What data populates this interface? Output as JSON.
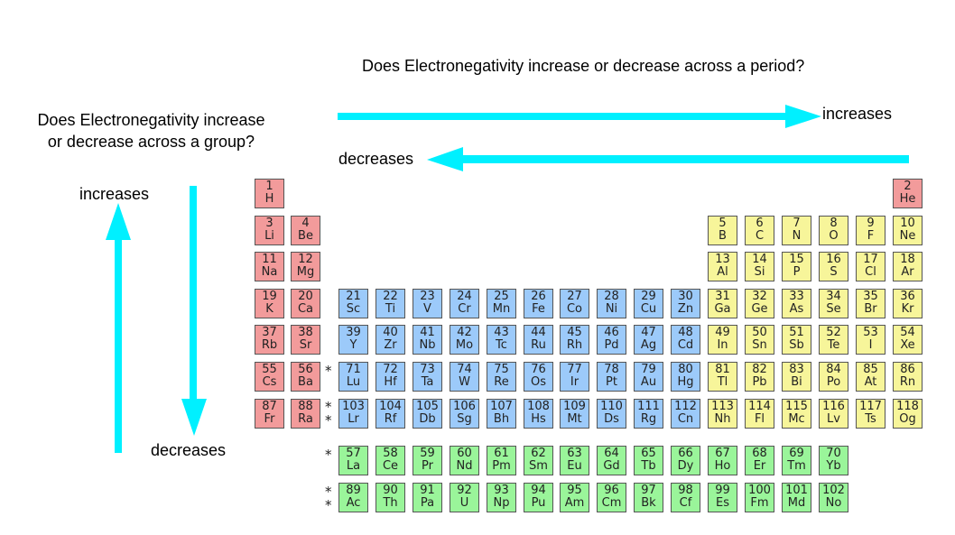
{
  "question_period": "Does Electronegativity increase or decrease across a period?",
  "question_group": "Does Electronegativity increase or decrease across a group?",
  "labels": {
    "period_increases": "increases",
    "period_decreases": "decreases",
    "group_increases": "increases",
    "group_decreases": "decreases"
  },
  "colors": {
    "arrow": "#00f0ff",
    "s_block": "#f29b9b",
    "p_block": "#f7f59a",
    "d_block": "#9ccafa",
    "f_block": "#9af59a"
  },
  "marker": "*",
  "elements": [
    {
      "n": "1",
      "s": "H",
      "row": 1,
      "col": 1,
      "b": "s"
    },
    {
      "n": "2",
      "s": "He",
      "row": 1,
      "col": 18,
      "b": "s"
    },
    {
      "n": "3",
      "s": "Li",
      "row": 2,
      "col": 1,
      "b": "s"
    },
    {
      "n": "4",
      "s": "Be",
      "row": 2,
      "col": 2,
      "b": "s"
    },
    {
      "n": "5",
      "s": "B",
      "row": 2,
      "col": 13,
      "b": "p"
    },
    {
      "n": "6",
      "s": "C",
      "row": 2,
      "col": 14,
      "b": "p"
    },
    {
      "n": "7",
      "s": "N",
      "row": 2,
      "col": 15,
      "b": "p"
    },
    {
      "n": "8",
      "s": "O",
      "row": 2,
      "col": 16,
      "b": "p"
    },
    {
      "n": "9",
      "s": "F",
      "row": 2,
      "col": 17,
      "b": "p"
    },
    {
      "n": "10",
      "s": "Ne",
      "row": 2,
      "col": 18,
      "b": "p"
    },
    {
      "n": "11",
      "s": "Na",
      "row": 3,
      "col": 1,
      "b": "s"
    },
    {
      "n": "12",
      "s": "Mg",
      "row": 3,
      "col": 2,
      "b": "s"
    },
    {
      "n": "13",
      "s": "Al",
      "row": 3,
      "col": 13,
      "b": "p"
    },
    {
      "n": "14",
      "s": "Si",
      "row": 3,
      "col": 14,
      "b": "p"
    },
    {
      "n": "15",
      "s": "P",
      "row": 3,
      "col": 15,
      "b": "p"
    },
    {
      "n": "16",
      "s": "S",
      "row": 3,
      "col": 16,
      "b": "p"
    },
    {
      "n": "17",
      "s": "Cl",
      "row": 3,
      "col": 17,
      "b": "p"
    },
    {
      "n": "18",
      "s": "Ar",
      "row": 3,
      "col": 18,
      "b": "p"
    },
    {
      "n": "19",
      "s": "K",
      "row": 4,
      "col": 1,
      "b": "s"
    },
    {
      "n": "20",
      "s": "Ca",
      "row": 4,
      "col": 2,
      "b": "s"
    },
    {
      "n": "21",
      "s": "Sc",
      "row": 4,
      "col": 3,
      "b": "d"
    },
    {
      "n": "22",
      "s": "Ti",
      "row": 4,
      "col": 4,
      "b": "d"
    },
    {
      "n": "23",
      "s": "V",
      "row": 4,
      "col": 5,
      "b": "d"
    },
    {
      "n": "24",
      "s": "Cr",
      "row": 4,
      "col": 6,
      "b": "d"
    },
    {
      "n": "25",
      "s": "Mn",
      "row": 4,
      "col": 7,
      "b": "d"
    },
    {
      "n": "26",
      "s": "Fe",
      "row": 4,
      "col": 8,
      "b": "d"
    },
    {
      "n": "27",
      "s": "Co",
      "row": 4,
      "col": 9,
      "b": "d"
    },
    {
      "n": "28",
      "s": "Ni",
      "row": 4,
      "col": 10,
      "b": "d"
    },
    {
      "n": "29",
      "s": "Cu",
      "row": 4,
      "col": 11,
      "b": "d"
    },
    {
      "n": "30",
      "s": "Zn",
      "row": 4,
      "col": 12,
      "b": "d"
    },
    {
      "n": "31",
      "s": "Ga",
      "row": 4,
      "col": 13,
      "b": "p"
    },
    {
      "n": "32",
      "s": "Ge",
      "row": 4,
      "col": 14,
      "b": "p"
    },
    {
      "n": "33",
      "s": "As",
      "row": 4,
      "col": 15,
      "b": "p"
    },
    {
      "n": "34",
      "s": "Se",
      "row": 4,
      "col": 16,
      "b": "p"
    },
    {
      "n": "35",
      "s": "Br",
      "row": 4,
      "col": 17,
      "b": "p"
    },
    {
      "n": "36",
      "s": "Kr",
      "row": 4,
      "col": 18,
      "b": "p"
    },
    {
      "n": "37",
      "s": "Rb",
      "row": 5,
      "col": 1,
      "b": "s"
    },
    {
      "n": "38",
      "s": "Sr",
      "row": 5,
      "col": 2,
      "b": "s"
    },
    {
      "n": "39",
      "s": "Y",
      "row": 5,
      "col": 3,
      "b": "d"
    },
    {
      "n": "40",
      "s": "Zr",
      "row": 5,
      "col": 4,
      "b": "d"
    },
    {
      "n": "41",
      "s": "Nb",
      "row": 5,
      "col": 5,
      "b": "d"
    },
    {
      "n": "42",
      "s": "Mo",
      "row": 5,
      "col": 6,
      "b": "d"
    },
    {
      "n": "43",
      "s": "Tc",
      "row": 5,
      "col": 7,
      "b": "d"
    },
    {
      "n": "44",
      "s": "Ru",
      "row": 5,
      "col": 8,
      "b": "d"
    },
    {
      "n": "45",
      "s": "Rh",
      "row": 5,
      "col": 9,
      "b": "d"
    },
    {
      "n": "46",
      "s": "Pd",
      "row": 5,
      "col": 10,
      "b": "d"
    },
    {
      "n": "47",
      "s": "Ag",
      "row": 5,
      "col": 11,
      "b": "d"
    },
    {
      "n": "48",
      "s": "Cd",
      "row": 5,
      "col": 12,
      "b": "d"
    },
    {
      "n": "49",
      "s": "In",
      "row": 5,
      "col": 13,
      "b": "p"
    },
    {
      "n": "50",
      "s": "Sn",
      "row": 5,
      "col": 14,
      "b": "p"
    },
    {
      "n": "51",
      "s": "Sb",
      "row": 5,
      "col": 15,
      "b": "p"
    },
    {
      "n": "52",
      "s": "Te",
      "row": 5,
      "col": 16,
      "b": "p"
    },
    {
      "n": "53",
      "s": "I",
      "row": 5,
      "col": 17,
      "b": "p"
    },
    {
      "n": "54",
      "s": "Xe",
      "row": 5,
      "col": 18,
      "b": "p"
    },
    {
      "n": "55",
      "s": "Cs",
      "row": 6,
      "col": 1,
      "b": "s"
    },
    {
      "n": "56",
      "s": "Ba",
      "row": 6,
      "col": 2,
      "b": "s"
    },
    {
      "n": "71",
      "s": "Lu",
      "row": 6,
      "col": 3,
      "b": "d"
    },
    {
      "n": "72",
      "s": "Hf",
      "row": 6,
      "col": 4,
      "b": "d"
    },
    {
      "n": "73",
      "s": "Ta",
      "row": 6,
      "col": 5,
      "b": "d"
    },
    {
      "n": "74",
      "s": "W",
      "row": 6,
      "col": 6,
      "b": "d"
    },
    {
      "n": "75",
      "s": "Re",
      "row": 6,
      "col": 7,
      "b": "d"
    },
    {
      "n": "76",
      "s": "Os",
      "row": 6,
      "col": 8,
      "b": "d"
    },
    {
      "n": "77",
      "s": "Ir",
      "row": 6,
      "col": 9,
      "b": "d"
    },
    {
      "n": "78",
      "s": "Pt",
      "row": 6,
      "col": 10,
      "b": "d"
    },
    {
      "n": "79",
      "s": "Au",
      "row": 6,
      "col": 11,
      "b": "d"
    },
    {
      "n": "80",
      "s": "Hg",
      "row": 6,
      "col": 12,
      "b": "d"
    },
    {
      "n": "81",
      "s": "Tl",
      "row": 6,
      "col": 13,
      "b": "p"
    },
    {
      "n": "82",
      "s": "Pb",
      "row": 6,
      "col": 14,
      "b": "p"
    },
    {
      "n": "83",
      "s": "Bi",
      "row": 6,
      "col": 15,
      "b": "p"
    },
    {
      "n": "84",
      "s": "Po",
      "row": 6,
      "col": 16,
      "b": "p"
    },
    {
      "n": "85",
      "s": "At",
      "row": 6,
      "col": 17,
      "b": "p"
    },
    {
      "n": "86",
      "s": "Rn",
      "row": 6,
      "col": 18,
      "b": "p"
    },
    {
      "n": "87",
      "s": "Fr",
      "row": 7,
      "col": 1,
      "b": "s"
    },
    {
      "n": "88",
      "s": "Ra",
      "row": 7,
      "col": 2,
      "b": "s"
    },
    {
      "n": "103",
      "s": "Lr",
      "row": 7,
      "col": 3,
      "b": "d"
    },
    {
      "n": "104",
      "s": "Rf",
      "row": 7,
      "col": 4,
      "b": "d"
    },
    {
      "n": "105",
      "s": "Db",
      "row": 7,
      "col": 5,
      "b": "d"
    },
    {
      "n": "106",
      "s": "Sg",
      "row": 7,
      "col": 6,
      "b": "d"
    },
    {
      "n": "107",
      "s": "Bh",
      "row": 7,
      "col": 7,
      "b": "d"
    },
    {
      "n": "108",
      "s": "Hs",
      "row": 7,
      "col": 8,
      "b": "d"
    },
    {
      "n": "109",
      "s": "Mt",
      "row": 7,
      "col": 9,
      "b": "d"
    },
    {
      "n": "110",
      "s": "Ds",
      "row": 7,
      "col": 10,
      "b": "d"
    },
    {
      "n": "111",
      "s": "Rg",
      "row": 7,
      "col": 11,
      "b": "d"
    },
    {
      "n": "112",
      "s": "Cn",
      "row": 7,
      "col": 12,
      "b": "d"
    },
    {
      "n": "113",
      "s": "Nh",
      "row": 7,
      "col": 13,
      "b": "p"
    },
    {
      "n": "114",
      "s": "Fl",
      "row": 7,
      "col": 14,
      "b": "p"
    },
    {
      "n": "115",
      "s": "Mc",
      "row": 7,
      "col": 15,
      "b": "p"
    },
    {
      "n": "116",
      "s": "Lv",
      "row": 7,
      "col": 16,
      "b": "p"
    },
    {
      "n": "117",
      "s": "Ts",
      "row": 7,
      "col": 17,
      "b": "p"
    },
    {
      "n": "118",
      "s": "Og",
      "row": 7,
      "col": 18,
      "b": "p"
    },
    {
      "n": "57",
      "s": "La",
      "row": 9,
      "col": 3,
      "b": "f"
    },
    {
      "n": "58",
      "s": "Ce",
      "row": 9,
      "col": 4,
      "b": "f"
    },
    {
      "n": "59",
      "s": "Pr",
      "row": 9,
      "col": 5,
      "b": "f"
    },
    {
      "n": "60",
      "s": "Nd",
      "row": 9,
      "col": 6,
      "b": "f"
    },
    {
      "n": "61",
      "s": "Pm",
      "row": 9,
      "col": 7,
      "b": "f"
    },
    {
      "n": "62",
      "s": "Sm",
      "row": 9,
      "col": 8,
      "b": "f"
    },
    {
      "n": "63",
      "s": "Eu",
      "row": 9,
      "col": 9,
      "b": "f"
    },
    {
      "n": "64",
      "s": "Gd",
      "row": 9,
      "col": 10,
      "b": "f"
    },
    {
      "n": "65",
      "s": "Tb",
      "row": 9,
      "col": 11,
      "b": "f"
    },
    {
      "n": "66",
      "s": "Dy",
      "row": 9,
      "col": 12,
      "b": "f"
    },
    {
      "n": "67",
      "s": "Ho",
      "row": 9,
      "col": 13,
      "b": "f"
    },
    {
      "n": "68",
      "s": "Er",
      "row": 9,
      "col": 14,
      "b": "f"
    },
    {
      "n": "69",
      "s": "Tm",
      "row": 9,
      "col": 15,
      "b": "f"
    },
    {
      "n": "70",
      "s": "Yb",
      "row": 9,
      "col": 16,
      "b": "f"
    },
    {
      "n": "89",
      "s": "Ac",
      "row": 10,
      "col": 3,
      "b": "f"
    },
    {
      "n": "90",
      "s": "Th",
      "row": 10,
      "col": 4,
      "b": "f"
    },
    {
      "n": "91",
      "s": "Pa",
      "row": 10,
      "col": 5,
      "b": "f"
    },
    {
      "n": "92",
      "s": "U",
      "row": 10,
      "col": 6,
      "b": "f"
    },
    {
      "n": "93",
      "s": "Np",
      "row": 10,
      "col": 7,
      "b": "f"
    },
    {
      "n": "94",
      "s": "Pu",
      "row": 10,
      "col": 8,
      "b": "f"
    },
    {
      "n": "95",
      "s": "Am",
      "row": 10,
      "col": 9,
      "b": "f"
    },
    {
      "n": "96",
      "s": "Cm",
      "row": 10,
      "col": 10,
      "b": "f"
    },
    {
      "n": "97",
      "s": "Bk",
      "row": 10,
      "col": 11,
      "b": "f"
    },
    {
      "n": "98",
      "s": "Cf",
      "row": 10,
      "col": 12,
      "b": "f"
    },
    {
      "n": "99",
      "s": "Es",
      "row": 10,
      "col": 13,
      "b": "f"
    },
    {
      "n": "100",
      "s": "Fm",
      "row": 10,
      "col": 14,
      "b": "f"
    },
    {
      "n": "101",
      "s": "Md",
      "row": 10,
      "col": 15,
      "b": "f"
    },
    {
      "n": "102",
      "s": "No",
      "row": 10,
      "col": 16,
      "b": "f"
    }
  ]
}
